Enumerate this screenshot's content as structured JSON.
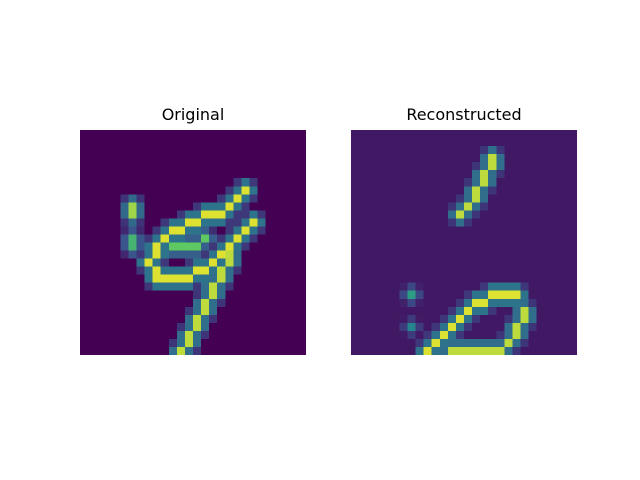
{
  "panels": [
    {
      "title": "Original",
      "grid_size": 28,
      "background": 0,
      "strokes": [
        {
          "points": [
            [
              6,
              9
            ],
            [
              6,
              10
            ]
          ],
          "value": 0.85
        },
        {
          "points": [
            [
              6,
              13
            ],
            [
              6,
              14
            ]
          ],
          "value": 0.65
        },
        {
          "points": [
            [
              20,
              7
            ],
            [
              18,
              9
            ],
            [
              16,
              10
            ],
            [
              13,
              11
            ],
            [
              11,
              12
            ],
            [
              9,
              14
            ],
            [
              8,
              16
            ],
            [
              9,
              18
            ]
          ],
          "value": 0.95
        },
        {
          "points": [
            [
              9,
              18
            ],
            [
              12,
              18
            ],
            [
              15,
              17
            ],
            [
              17,
              15
            ],
            [
              19,
              13
            ],
            [
              21,
              11
            ]
          ],
          "value": 0.95
        },
        {
          "points": [
            [
              18,
              15
            ],
            [
              17,
              17
            ],
            [
              16,
              19
            ],
            [
              15,
              21
            ],
            [
              14,
              23
            ],
            [
              13,
              25
            ],
            [
              12,
              27
            ]
          ],
          "value": 0.9
        },
        {
          "points": [
            [
              11,
              14
            ],
            [
              13,
              14
            ],
            [
              15,
              13
            ]
          ],
          "value": 0.75
        }
      ]
    },
    {
      "title": "Reconstructed",
      "grid_size": 28,
      "background": 0.07,
      "strokes": [
        {
          "points": [
            [
              17,
              3
            ],
            [
              16,
              5
            ],
            [
              15,
              7
            ],
            [
              14,
              9
            ],
            [
              13,
              10
            ]
          ],
          "value": 0.9
        },
        {
          "points": [
            [
              20,
              20
            ],
            [
              17,
              20
            ],
            [
              14,
              22
            ],
            [
              12,
              24
            ],
            [
              10,
              26
            ],
            [
              9,
              27
            ]
          ],
          "value": 0.95
        },
        {
          "points": [
            [
              21,
              22
            ],
            [
              20,
              24
            ],
            [
              19,
              26
            ],
            [
              17,
              27
            ],
            [
              15,
              27
            ],
            [
              12,
              27
            ]
          ],
          "value": 0.9
        },
        {
          "points": [
            [
              7,
              20
            ]
          ],
          "value": 0.55
        },
        {
          "points": [
            [
              7,
              24
            ]
          ],
          "value": 0.45
        }
      ]
    }
  ],
  "colormap": [
    "#440154",
    "#3b528b",
    "#21918c",
    "#5ec962",
    "#fde725"
  ]
}
